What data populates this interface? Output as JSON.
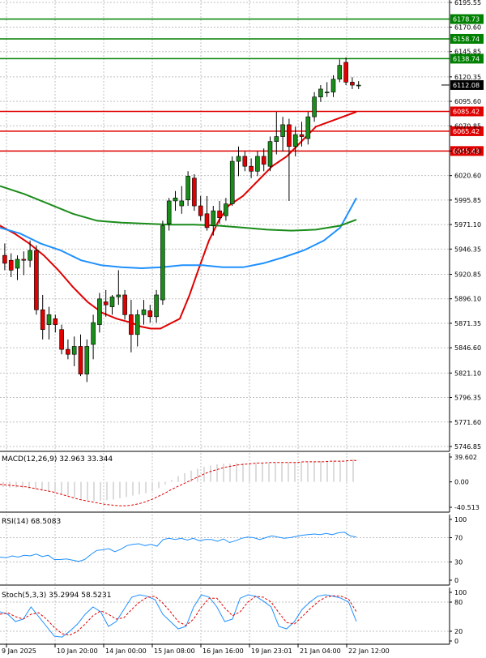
{
  "chart_data": [
    {
      "type": "candlestick",
      "title": "",
      "ylim": [
        5746.85,
        6195.55
      ],
      "y_axis_ticks": [
        "6195.55",
        "6170.60",
        "6145.85",
        "6120.35",
        "6095.60",
        "6070.85",
        "6045.43",
        "6020.60",
        "5995.85",
        "5971.10",
        "5946.35",
        "5920.85",
        "5896.10",
        "5871.35",
        "5846.60",
        "5821.10",
        "5796.35",
        "5771.60",
        "5746.85"
      ],
      "last_price": "6112.08",
      "horizontal_levels": [
        {
          "label": "6178.73",
          "value": 6178.73,
          "color": "#008000"
        },
        {
          "label": "6158.74",
          "value": 6158.74,
          "color": "#008000"
        },
        {
          "label": "6138.74",
          "value": 6138.74,
          "color": "#008000"
        },
        {
          "label": "6085.42",
          "value": 6085.42,
          "color": "#e00000"
        },
        {
          "label": "6065.42",
          "value": 6065.42,
          "color": "#e00000"
        },
        {
          "label": "6045.43",
          "value": 6045.43,
          "color": "#e00000"
        }
      ],
      "candles": [
        {
          "o": 5940,
          "h": 5952,
          "l": 5925,
          "c": 5932
        },
        {
          "o": 5935,
          "h": 5942,
          "l": 5918,
          "c": 5925
        },
        {
          "o": 5927,
          "h": 5940,
          "l": 5915,
          "c": 5936
        },
        {
          "o": 5936,
          "h": 5944,
          "l": 5920,
          "c": 5935
        },
        {
          "o": 5935,
          "h": 5955,
          "l": 5928,
          "c": 5945
        },
        {
          "o": 5945,
          "h": 5950,
          "l": 5880,
          "c": 5885
        },
        {
          "o": 5885,
          "h": 5900,
          "l": 5855,
          "c": 5865
        },
        {
          "o": 5870,
          "h": 5888,
          "l": 5855,
          "c": 5880
        },
        {
          "o": 5876,
          "h": 5880,
          "l": 5862,
          "c": 5870
        },
        {
          "o": 5865,
          "h": 5870,
          "l": 5840,
          "c": 5845
        },
        {
          "o": 5845,
          "h": 5855,
          "l": 5835,
          "c": 5840
        },
        {
          "o": 5840,
          "h": 5858,
          "l": 5828,
          "c": 5848
        },
        {
          "o": 5848,
          "h": 5860,
          "l": 5818,
          "c": 5820
        },
        {
          "o": 5820,
          "h": 5855,
          "l": 5812,
          "c": 5848
        },
        {
          "o": 5850,
          "h": 5880,
          "l": 5835,
          "c": 5872
        },
        {
          "o": 5870,
          "h": 5902,
          "l": 5862,
          "c": 5896
        },
        {
          "o": 5893,
          "h": 5905,
          "l": 5878,
          "c": 5890
        },
        {
          "o": 5888,
          "h": 5900,
          "l": 5880,
          "c": 5898
        },
        {
          "o": 5898,
          "h": 5925,
          "l": 5890,
          "c": 5900
        },
        {
          "o": 5900,
          "h": 5905,
          "l": 5875,
          "c": 5880
        },
        {
          "o": 5880,
          "h": 5895,
          "l": 5842,
          "c": 5860
        },
        {
          "o": 5860,
          "h": 5885,
          "l": 5848,
          "c": 5880
        },
        {
          "o": 5880,
          "h": 5895,
          "l": 5870,
          "c": 5885
        },
        {
          "o": 5884,
          "h": 5890,
          "l": 5872,
          "c": 5878
        },
        {
          "o": 5878,
          "h": 5905,
          "l": 5872,
          "c": 5900
        },
        {
          "o": 5895,
          "h": 5975,
          "l": 5890,
          "c": 5970
        },
        {
          "o": 5972,
          "h": 5998,
          "l": 5965,
          "c": 5995
        },
        {
          "o": 5995,
          "h": 6005,
          "l": 5985,
          "c": 5998
        },
        {
          "o": 5990,
          "h": 6010,
          "l": 5982,
          "c": 5995
        },
        {
          "o": 5996,
          "h": 6025,
          "l": 5990,
          "c": 6020
        },
        {
          "o": 6018,
          "h": 6022,
          "l": 5985,
          "c": 5990
        },
        {
          "o": 5990,
          "h": 6000,
          "l": 5975,
          "c": 5980
        },
        {
          "o": 5982,
          "h": 6000,
          "l": 5965,
          "c": 5968
        },
        {
          "o": 5970,
          "h": 5990,
          "l": 5960,
          "c": 5985
        },
        {
          "o": 5985,
          "h": 5995,
          "l": 5972,
          "c": 5978
        },
        {
          "o": 5980,
          "h": 5998,
          "l": 5975,
          "c": 5992
        },
        {
          "o": 5992,
          "h": 6040,
          "l": 5990,
          "c": 6035
        },
        {
          "o": 6035,
          "h": 6050,
          "l": 6020,
          "c": 6040
        },
        {
          "o": 6040,
          "h": 6045,
          "l": 6025,
          "c": 6030
        },
        {
          "o": 6030,
          "h": 6038,
          "l": 6018,
          "c": 6025
        },
        {
          "o": 6025,
          "h": 6045,
          "l": 6020,
          "c": 6040
        },
        {
          "o": 6040,
          "h": 6048,
          "l": 6025,
          "c": 6032
        },
        {
          "o": 6030,
          "h": 6060,
          "l": 6025,
          "c": 6055
        },
        {
          "o": 6055,
          "h": 6085,
          "l": 6042,
          "c": 6060
        },
        {
          "o": 6060,
          "h": 6080,
          "l": 6045,
          "c": 6072
        },
        {
          "o": 6072,
          "h": 6078,
          "l": 5995,
          "c": 6050
        },
        {
          "o": 6050,
          "h": 6070,
          "l": 6040,
          "c": 6062
        },
        {
          "o": 6062,
          "h": 6075,
          "l": 6050,
          "c": 6060
        },
        {
          "o": 6058,
          "h": 6085,
          "l": 6052,
          "c": 6080
        },
        {
          "o": 6080,
          "h": 6105,
          "l": 6075,
          "c": 6100
        },
        {
          "o": 6100,
          "h": 6112,
          "l": 6095,
          "c": 6108
        },
        {
          "o": 6105,
          "h": 6115,
          "l": 6100,
          "c": 6105
        },
        {
          "o": 6105,
          "h": 6122,
          "l": 6100,
          "c": 6118
        },
        {
          "o": 6118,
          "h": 6138,
          "l": 6115,
          "c": 6132
        },
        {
          "o": 6135,
          "h": 6140,
          "l": 6112,
          "c": 6115
        },
        {
          "o": 6115,
          "h": 6120,
          "l": 6108,
          "c": 6112
        },
        {
          "o": 6112,
          "h": 6116,
          "l": 6108,
          "c": 6112
        }
      ],
      "moving_averages": [
        {
          "color": "#e00000",
          "points": [
            5970,
            5962,
            5952,
            5940,
            5925,
            5908,
            5893,
            5882,
            5876,
            5872,
            5868,
            5866,
            5866,
            5876,
            5900,
            5928,
            5955,
            5975,
            5990,
            6000,
            6015,
            6030,
            6040,
            6055,
            6070,
            6085
          ]
        },
        {
          "color": "#1e90ff",
          "points": [
            5968,
            5962,
            5952,
            5945,
            5935,
            5930,
            5928,
            5927,
            5928,
            5930,
            5930,
            5928,
            5928,
            5932,
            5938,
            5945,
            5955,
            5968,
            5998
          ]
        },
        {
          "color": "#1a8c1a",
          "points": [
            6010,
            6002,
            5992,
            5982,
            5975,
            5973,
            5972,
            5971,
            5971,
            5970,
            5968,
            5966,
            5965,
            5966,
            5970,
            5976
          ]
        }
      ],
      "x_axis_labels": [
        "9 Jan 2025",
        "10 Jan 20:00",
        "14 Jan 00:00",
        "15 Jan 08:00",
        "16 Jan 16:00",
        "19 Jan 23:01",
        "21 Jan 04:00",
        "22 Jan 12:00"
      ]
    },
    {
      "type": "bar",
      "indicator": "MACD",
      "label": "MACD(12,26,9) 32.963 33.344",
      "y_axis_ticks": [
        "39.602",
        "0.00",
        "-40.513"
      ],
      "ylim": [
        -40.513,
        39.602
      ],
      "histogram": [
        -8,
        -9,
        -9,
        -10,
        -11,
        -12,
        -14,
        -16,
        -18,
        -20,
        -22,
        -25,
        -27,
        -29,
        -30,
        -30,
        -29,
        -28,
        -26,
        -24,
        -22,
        -20,
        -18,
        -15,
        -10,
        -4,
        3,
        9,
        14,
        18,
        21,
        24,
        26,
        28,
        29,
        29,
        30,
        30,
        30,
        30,
        30,
        30,
        30,
        30,
        31,
        31,
        31,
        31,
        32,
        33,
        33,
        34,
        34,
        35,
        36
      ],
      "signal": [
        -4,
        -5,
        -6,
        -7,
        -8,
        -10,
        -12,
        -14,
        -16,
        -19,
        -22,
        -25,
        -28,
        -30,
        -32,
        -34,
        -36,
        -37,
        -38,
        -38,
        -37,
        -35,
        -32,
        -28,
        -23,
        -18,
        -12,
        -7,
        -2,
        3,
        8,
        13,
        17,
        20,
        23,
        25,
        27,
        28,
        29,
        30,
        30,
        31,
        31,
        31,
        31,
        31,
        32,
        32,
        32,
        32,
        33,
        33,
        33,
        34,
        34
      ]
    },
    {
      "type": "line",
      "indicator": "RSI",
      "label": "RSI(14) 68.5083",
      "y_axis_ticks": [
        "100",
        "70",
        "30",
        "0"
      ],
      "ylim": [
        0,
        100
      ],
      "values": [
        38,
        37,
        40,
        38,
        41,
        40,
        43,
        39,
        41,
        34,
        34,
        35,
        33,
        31,
        34,
        42,
        49,
        50,
        52,
        47,
        51,
        57,
        59,
        60,
        57,
        59,
        56,
        67,
        69,
        67,
        69,
        66,
        69,
        65,
        67,
        67,
        64,
        68,
        62,
        65,
        69,
        71,
        70,
        67,
        70,
        73,
        71,
        69,
        70,
        72,
        74,
        75,
        76,
        75,
        77,
        75,
        78,
        79,
        73,
        71
      ]
    },
    {
      "type": "line",
      "indicator": "Stochastic",
      "label": "Stoch(5,3,3) 35.2994 58.5231",
      "y_axis_ticks": [
        "100",
        "80",
        "20",
        "0"
      ],
      "ylim": [
        0,
        100
      ],
      "series": [
        {
          "color": "#1e90ff",
          "values": [
            60,
            55,
            40,
            45,
            70,
            50,
            30,
            10,
            8,
            20,
            35,
            55,
            70,
            60,
            30,
            40,
            65,
            90,
            95,
            92,
            85,
            55,
            40,
            25,
            30,
            70,
            95,
            90,
            70,
            40,
            45,
            88,
            95,
            92,
            82,
            70,
            30,
            25,
            40,
            65,
            80,
            92,
            95,
            92,
            88,
            80,
            40
          ]
        },
        {
          "color": "#e00000",
          "values": [
            55,
            58,
            50,
            45,
            55,
            58,
            45,
            28,
            15,
            12,
            20,
            35,
            52,
            62,
            55,
            45,
            48,
            65,
            80,
            90,
            92,
            78,
            60,
            40,
            32,
            45,
            70,
            88,
            88,
            68,
            52,
            60,
            80,
            92,
            90,
            80,
            58,
            38,
            35,
            50,
            66,
            80,
            90,
            93,
            92,
            86,
            60
          ]
        }
      ]
    }
  ]
}
